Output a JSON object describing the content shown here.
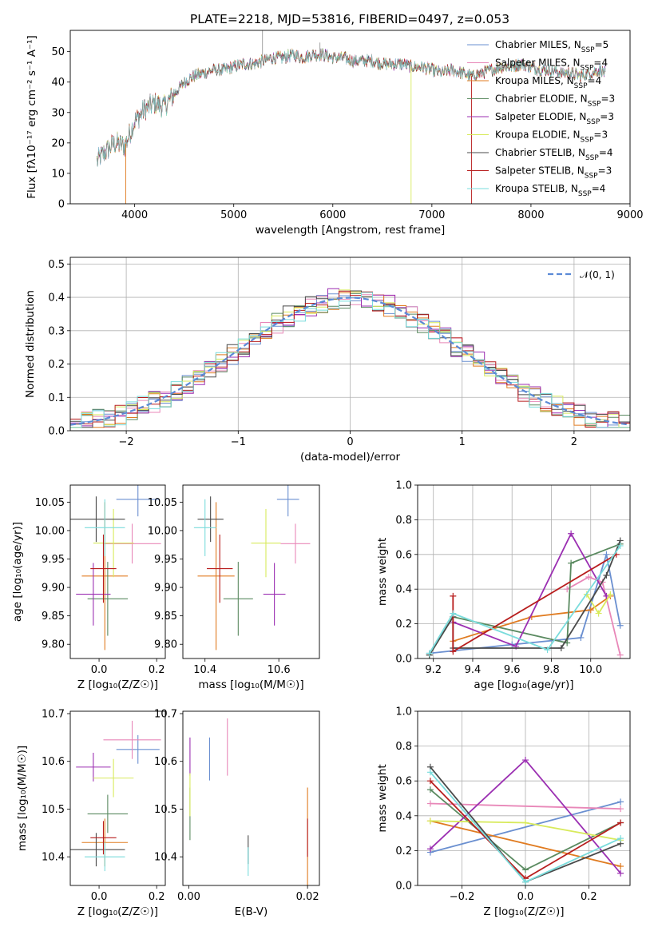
{
  "figure": {
    "title": "PLATE=2218, MJD=53816, FIBERID=0497, z=0.053"
  },
  "chart_data": [
    {
      "id": "spectrum",
      "type": "line",
      "title": "PLATE=2218, MJD=53816, FIBERID=0497, z=0.053",
      "xlabel": "wavelength [Angstrom, rest frame]",
      "ylabel": "Flux [fλ10⁻¹⁷ erg cm⁻² s⁻¹ A⁻¹]",
      "xlim": [
        3350,
        9000
      ],
      "ylim": [
        0,
        57
      ],
      "xticks": [
        "4000",
        "5000",
        "6000",
        "7000",
        "8000",
        "9000"
      ],
      "yticks": [
        "0",
        "10",
        "20",
        "30",
        "40",
        "50"
      ],
      "legend_position": "upper right",
      "series": [
        {
          "name": "Chabrier MILES, N_SSP=5",
          "color": "#6a8fd0"
        },
        {
          "name": "Salpeter MILES, N_SSP=4",
          "color": "#e887b8"
        },
        {
          "name": "Kroupa MILES, N_SSP=4",
          "color": "#e07b20"
        },
        {
          "name": "Chabrier ELODIE, N_SSP=3",
          "color": "#5a8a60"
        },
        {
          "name": "Salpeter ELODIE, N_SSP=3",
          "color": "#9b2fb2"
        },
        {
          "name": "Kroupa ELODIE, N_SSP=3",
          "color": "#d8ea5c"
        },
        {
          "name": "Chabrier STELIB, N_SSP=4",
          "color": "#4a4a4a"
        },
        {
          "name": "Salpeter STELIB, N_SSP=3",
          "color": "#b81e1e"
        },
        {
          "name": "Kroupa STELIB, N_SSP=4",
          "color": "#7adcdc"
        }
      ],
      "continuum": {
        "x": [
          3620,
          3700,
          3800,
          3900,
          4000,
          4100,
          4200,
          4300,
          4400,
          4500,
          4600,
          4700,
          4800,
          4900,
          5000,
          5100,
          5200,
          5300,
          5400,
          5500,
          5600,
          5700,
          5800,
          5900,
          6000,
          6100,
          6200,
          6300,
          6400,
          6500,
          6600,
          6700,
          6800,
          6900,
          7000,
          7100,
          7200,
          7300,
          7400,
          7500,
          7600,
          7700,
          7800,
          7900,
          8000,
          8100,
          8200,
          8300,
          8400,
          8500,
          8600,
          8700,
          8750
        ],
        "y": [
          14,
          17,
          20,
          19,
          27,
          31,
          33,
          32,
          36,
          40,
          42,
          43,
          44,
          44,
          45,
          46,
          46,
          47,
          48,
          48,
          49,
          48,
          49,
          49,
          48,
          48,
          47,
          47,
          47,
          46,
          46,
          46,
          45,
          45,
          44,
          43,
          44,
          43,
          42,
          43,
          44,
          45,
          45,
          46,
          45,
          44,
          44,
          43,
          43,
          42,
          43,
          44,
          43
        ]
      },
      "spikes": [
        {
          "x": 3910,
          "y": 0
        },
        {
          "x": 5290,
          "y": 57
        },
        {
          "x": 6790,
          "y": 0
        },
        {
          "x": 7400,
          "y": 0
        },
        {
          "x": 5870,
          "y": 53
        }
      ]
    },
    {
      "id": "residuals",
      "type": "line",
      "xlabel": "(data-model)/error",
      "ylabel": "Normed distribution",
      "xlim": [
        -2.5,
        2.5
      ],
      "ylim": [
        0,
        0.52
      ],
      "xticks": [
        "−2",
        "−1",
        "0",
        "1",
        "2"
      ],
      "yticks": [
        "0.0",
        "0.1",
        "0.2",
        "0.3",
        "0.4",
        "0.5"
      ],
      "grid": true,
      "reference": {
        "name": "𝒩(0, 1)",
        "mean": 0,
        "sigma": 1,
        "color": "#5b8ad6",
        "style": "dashed"
      },
      "bin_width": 0.1
    },
    {
      "id": "age-vs-Z",
      "type": "scatter",
      "xlabel": "Z [log₁₀(Z/Z☉)]",
      "ylabel": "age  [log₁₀(age/yr)]",
      "xlim": [
        -0.1,
        0.23
      ],
      "ylim": [
        9.775,
        10.08
      ],
      "xticks": [
        "0.0",
        "0.2"
      ],
      "yticks": [
        "9.80",
        "9.85",
        "9.90",
        "9.95",
        "10.00",
        "10.05"
      ],
      "points": [
        {
          "x": 0.135,
          "y": 10.055,
          "xe": 0.075,
          "ye": 0.03,
          "color": "#6a8fd0"
        },
        {
          "x": 0.115,
          "y": 9.977,
          "xe": 0.1,
          "ye": 0.035,
          "color": "#e887b8"
        },
        {
          "x": 0.02,
          "y": 9.92,
          "xe": 0.08,
          "ye": 0.13,
          "color": "#e07b20"
        },
        {
          "x": 0.03,
          "y": 9.88,
          "xe": 0.07,
          "ye": 0.065,
          "color": "#5a8a60"
        },
        {
          "x": -0.02,
          "y": 9.888,
          "xe": 0.06,
          "ye": 0.055,
          "color": "#9b2fb2"
        },
        {
          "x": 0.05,
          "y": 9.978,
          "xe": 0.07,
          "ye": 0.06,
          "color": "#d8ea5c"
        },
        {
          "x": -0.01,
          "y": 10.02,
          "xe": 0.1,
          "ye": 0.04,
          "color": "#4a4a4a"
        },
        {
          "x": 0.015,
          "y": 9.933,
          "xe": 0.045,
          "ye": 0.06,
          "color": "#b81e1e"
        },
        {
          "x": 0.02,
          "y": 10.005,
          "xe": 0.07,
          "ye": 0.05,
          "color": "#7adcdc"
        }
      ]
    },
    {
      "id": "age-vs-mass",
      "type": "scatter",
      "xlabel": "mass [log₁₀(M/M☉)]",
      "ylabel": "",
      "xlim": [
        10.34,
        10.71
      ],
      "ylim": [
        9.775,
        10.08
      ],
      "xticks": [
        "10.4",
        "10.6"
      ],
      "yticks": [
        "9.80",
        "9.85",
        "9.90",
        "9.95",
        "10.00",
        "10.05"
      ],
      "points": [
        {
          "x": 10.625,
          "y": 10.055,
          "xe": 0.03,
          "ye": 0.03,
          "color": "#6a8fd0"
        },
        {
          "x": 10.645,
          "y": 9.977,
          "xe": 0.04,
          "ye": 0.035,
          "color": "#e887b8"
        },
        {
          "x": 10.43,
          "y": 9.92,
          "xe": 0.05,
          "ye": 0.13,
          "color": "#e07b20"
        },
        {
          "x": 10.49,
          "y": 9.88,
          "xe": 0.04,
          "ye": 0.065,
          "color": "#5a8a60"
        },
        {
          "x": 10.588,
          "y": 9.888,
          "xe": 0.03,
          "ye": 0.055,
          "color": "#9b2fb2"
        },
        {
          "x": 10.565,
          "y": 9.978,
          "xe": 0.04,
          "ye": 0.06,
          "color": "#d8ea5c"
        },
        {
          "x": 10.415,
          "y": 10.02,
          "xe": 0.035,
          "ye": 0.04,
          "color": "#4a4a4a"
        },
        {
          "x": 10.44,
          "y": 9.933,
          "xe": 0.035,
          "ye": 0.06,
          "color": "#b81e1e"
        },
        {
          "x": 10.4,
          "y": 10.005,
          "xe": 0.03,
          "ye": 0.05,
          "color": "#7adcdc"
        }
      ]
    },
    {
      "id": "mass-weight-vs-age",
      "type": "line",
      "xlabel": "age  [log₁₀(age/yr)]",
      "ylabel": "mass weight",
      "xlim": [
        9.12,
        10.2
      ],
      "ylim": [
        0,
        1
      ],
      "xticks": [
        "9.2",
        "9.4",
        "9.6",
        "9.8",
        "10.0"
      ],
      "yticks": [
        "0.0",
        "0.2",
        "0.4",
        "0.6",
        "0.8",
        "1.0"
      ],
      "grid": true,
      "series": [
        {
          "color": "#6a8fd0",
          "x": [
            9.18,
            9.6,
            9.95,
            10.08,
            10.15
          ],
          "y": [
            0.03,
            0.08,
            0.12,
            0.6,
            0.19
          ]
        },
        {
          "color": "#e887b8",
          "x": [
            9.88,
            9.99,
            10.06,
            10.15
          ],
          "y": [
            0.4,
            0.47,
            0.44,
            0.02
          ]
        },
        {
          "color": "#e07b20",
          "x": [
            9.3,
            9.7,
            10.0,
            10.1
          ],
          "y": [
            0.1,
            0.24,
            0.28,
            0.36
          ]
        },
        {
          "color": "#5a8a60",
          "x": [
            9.18,
            9.3,
            9.88,
            9.9,
            10.15
          ],
          "y": [
            0.02,
            0.24,
            0.09,
            0.55,
            0.66
          ]
        },
        {
          "color": "#9b2fb2",
          "x": [
            9.3,
            9.62,
            9.9,
            10.08
          ],
          "y": [
            0.21,
            0.07,
            0.72,
            0.36
          ]
        },
        {
          "color": "#d8ea5c",
          "x": [
            9.98,
            10.04,
            10.1
          ],
          "y": [
            0.37,
            0.26,
            0.37
          ]
        },
        {
          "color": "#4a4a4a",
          "x": [
            9.18,
            9.3,
            9.3,
            9.85,
            10.08,
            10.15
          ],
          "y": [
            0.02,
            0.24,
            0.06,
            0.06,
            0.48,
            0.68
          ]
        },
        {
          "color": "#b81e1e",
          "x": [
            9.3,
            9.3,
            10.13
          ],
          "y": [
            0.36,
            0.04,
            0.6
          ]
        },
        {
          "color": "#7adcdc",
          "x": [
            9.18,
            9.3,
            9.78,
            10.15
          ],
          "y": [
            0.03,
            0.26,
            0.05,
            0.65
          ]
        }
      ]
    },
    {
      "id": "mass-vs-Z",
      "type": "scatter",
      "xlabel": "Z [log₁₀(Z/Z☉)]",
      "ylabel": "mass [log₁₀(M/M☉)]",
      "xlim": [
        -0.1,
        0.23
      ],
      "ylim": [
        10.34,
        10.705
      ],
      "xticks": [
        "0.0",
        "0.2"
      ],
      "yticks": [
        "10.4",
        "10.5",
        "10.6",
        "10.7"
      ],
      "points": [
        {
          "x": 0.135,
          "y": 10.625,
          "xe": 0.075,
          "ye": 0.03,
          "color": "#6a8fd0"
        },
        {
          "x": 0.115,
          "y": 10.645,
          "xe": 0.1,
          "ye": 0.04,
          "color": "#e887b8"
        },
        {
          "x": 0.02,
          "y": 10.43,
          "xe": 0.08,
          "ye": 0.05,
          "color": "#e07b20"
        },
        {
          "x": 0.03,
          "y": 10.49,
          "xe": 0.07,
          "ye": 0.04,
          "color": "#5a8a60"
        },
        {
          "x": -0.02,
          "y": 10.588,
          "xe": 0.06,
          "ye": 0.03,
          "color": "#9b2fb2"
        },
        {
          "x": 0.05,
          "y": 10.565,
          "xe": 0.07,
          "ye": 0.04,
          "color": "#d8ea5c"
        },
        {
          "x": -0.01,
          "y": 10.415,
          "xe": 0.1,
          "ye": 0.035,
          "color": "#4a4a4a"
        },
        {
          "x": 0.015,
          "y": 10.44,
          "xe": 0.045,
          "ye": 0.035,
          "color": "#b81e1e"
        },
        {
          "x": 0.02,
          "y": 10.4,
          "xe": 0.07,
          "ye": 0.03,
          "color": "#7adcdc"
        }
      ]
    },
    {
      "id": "mass-vs-ebv",
      "type": "scatter",
      "xlabel": "E(B-V)",
      "ylabel": "",
      "xlim": [
        -0.001,
        0.022
      ],
      "ylim": [
        10.34,
        10.705
      ],
      "xticks": [
        "0.00",
        "0.02"
      ],
      "yticks": [
        "10.4",
        "10.5",
        "10.6",
        "10.7"
      ],
      "points": [
        {
          "x": 0.0035,
          "y": 10.605,
          "ye": 0.045,
          "color": "#6a8fd0"
        },
        {
          "x": 0.0065,
          "y": 10.63,
          "ye": 0.06,
          "color": "#e887b8"
        },
        {
          "x": 0.02,
          "y": 10.43,
          "ye": 0.115,
          "color": "#e07b20"
        },
        {
          "x": 0.0002,
          "y": 10.49,
          "ye": 0.055,
          "color": "#5a8a60"
        },
        {
          "x": 0.0002,
          "y": 10.61,
          "ye": 0.04,
          "color": "#9b2fb2"
        },
        {
          "x": 0.0002,
          "y": 10.53,
          "ye": 0.045,
          "color": "#d8ea5c"
        },
        {
          "x": 0.01,
          "y": 10.415,
          "ye": 0.03,
          "color": "#4a4a4a"
        },
        {
          "x": 0.02,
          "y": 10.44,
          "ye": 0.04,
          "color": "#b81e1e"
        },
        {
          "x": 0.01,
          "y": 10.39,
          "ye": 0.03,
          "color": "#7adcdc"
        }
      ]
    },
    {
      "id": "mass-weight-vs-Z",
      "type": "line",
      "xlabel": "Z [log₁₀(Z/Z☉)]",
      "ylabel": "mass weight",
      "xlim": [
        -0.34,
        0.33
      ],
      "ylim": [
        0,
        1
      ],
      "xticks": [
        "−0.2",
        "0.0",
        "0.2"
      ],
      "yticks": [
        "0.0",
        "0.2",
        "0.4",
        "0.6",
        "0.8",
        "1.0"
      ],
      "grid": true,
      "series": [
        {
          "color": "#6a8fd0",
          "x": [
            -0.3,
            0.3
          ],
          "y": [
            0.19,
            0.48
          ]
        },
        {
          "color": "#e887b8",
          "x": [
            -0.3,
            0.3
          ],
          "y": [
            0.47,
            0.44
          ]
        },
        {
          "color": "#e07b20",
          "x": [
            -0.3,
            0.3
          ],
          "y": [
            0.37,
            0.11
          ]
        },
        {
          "color": "#5a8a60",
          "x": [
            -0.3,
            0.0,
            0.3
          ],
          "y": [
            0.55,
            0.09,
            0.36
          ]
        },
        {
          "color": "#9b2fb2",
          "x": [
            -0.3,
            0.0,
            0.3
          ],
          "y": [
            0.21,
            0.72,
            0.07
          ]
        },
        {
          "color": "#d8ea5c",
          "x": [
            -0.3,
            0.0,
            0.3
          ],
          "y": [
            0.37,
            0.36,
            0.26
          ]
        },
        {
          "color": "#4a4a4a",
          "x": [
            -0.3,
            0.0,
            0.3
          ],
          "y": [
            0.68,
            0.02,
            0.24
          ]
        },
        {
          "color": "#b81e1e",
          "x": [
            -0.3,
            0.0,
            0.3
          ],
          "y": [
            0.6,
            0.04,
            0.36
          ]
        },
        {
          "color": "#7adcdc",
          "x": [
            -0.3,
            0.0,
            0.3
          ],
          "y": [
            0.65,
            0.02,
            0.27
          ]
        }
      ]
    }
  ]
}
